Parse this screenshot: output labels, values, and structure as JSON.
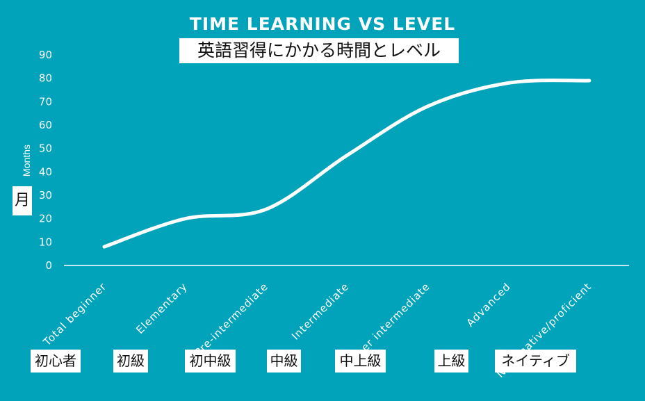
{
  "chart_data": {
    "type": "line",
    "title": "TIME LEARNING VS LEVEL",
    "subtitle": "英語習得にかかる時間とレベル",
    "ylabel": "Months",
    "ylabel_jp": "月",
    "xlabel": "",
    "ylim": [
      0,
      90
    ],
    "yticks": [
      0,
      10,
      20,
      30,
      40,
      50,
      60,
      70,
      80,
      90
    ],
    "categories": [
      "Total beginner",
      "Elementary",
      "Pre-intermediate",
      "Intermediate",
      "Upper intermediate",
      "Advanced",
      "Near native/proficient"
    ],
    "categories_jp": [
      "初心者",
      "初級",
      "初中級",
      "中級",
      "中上級",
      "上級",
      "ネイティブ"
    ],
    "series": [
      {
        "values": [
          8,
          20,
          24,
          47,
          68,
          78,
          79
        ]
      }
    ],
    "grid": false,
    "legend": "none",
    "colors": {
      "background": "#00a3ba",
      "line": "#ffffff",
      "axis": "#ffffff"
    }
  }
}
